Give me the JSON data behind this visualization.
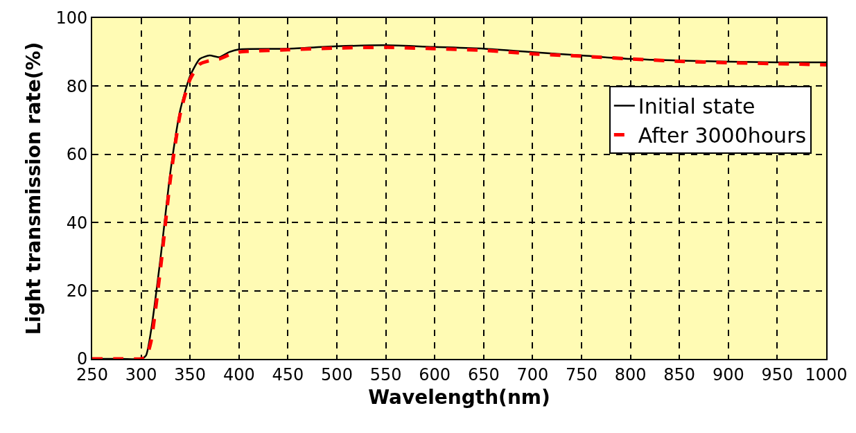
{
  "chart_data": {
    "type": "line",
    "xlabel": "Wavelength(nm)",
    "ylabel": "Light transmission rate(%)",
    "xlim": [
      250,
      1000
    ],
    "xticks": [
      250,
      300,
      350,
      400,
      450,
      500,
      550,
      600,
      650,
      700,
      750,
      800,
      850,
      900,
      950,
      1000
    ],
    "ylim": [
      0,
      100
    ],
    "yticks": [
      0,
      20,
      40,
      60,
      80,
      100
    ],
    "grid": true,
    "legend": "top right",
    "marker": "none",
    "series": [
      {
        "name": "Initial state",
        "color": "#000000",
        "line_style": "solid",
        "x": [
          250,
          280,
          300,
          305,
          310,
          320,
          330,
          340,
          350,
          360,
          370,
          380,
          390,
          400,
          450,
          500,
          550,
          600,
          650,
          700,
          750,
          800,
          850,
          900,
          950,
          1000
        ],
        "values": [
          0,
          0,
          0,
          1,
          8,
          30,
          55,
          73,
          83,
          88,
          89,
          88.5,
          90,
          90.8,
          91,
          91.7,
          92,
          91.5,
          91,
          90,
          89,
          88,
          87.5,
          87.2,
          87,
          87
        ]
      },
      {
        "name": "After 3000hours",
        "color": "#ff0000",
        "line_style": "dashed",
        "x": [
          250,
          280,
          300,
          305,
          310,
          320,
          330,
          340,
          350,
          360,
          370,
          380,
          390,
          400,
          450,
          500,
          550,
          600,
          650,
          700,
          750,
          800,
          850,
          900,
          950,
          1000
        ],
        "values": [
          0,
          0,
          0,
          0.5,
          5,
          27,
          53,
          72,
          82,
          86.5,
          87.5,
          88,
          89.2,
          90,
          90.7,
          91.2,
          91.4,
          91,
          90.5,
          89.5,
          88.8,
          88,
          87.3,
          86.9,
          86.6,
          86.3
        ]
      }
    ]
  }
}
